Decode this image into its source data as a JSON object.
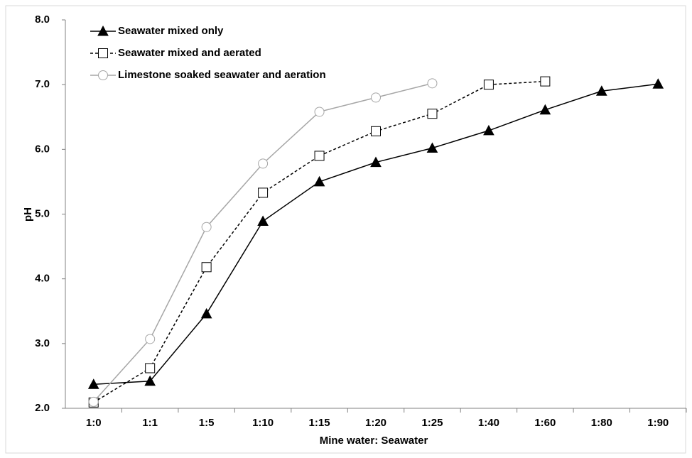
{
  "chart_data": {
    "type": "line",
    "x_label": "Mine water: Seawater",
    "y_label": "pH",
    "categories": [
      "1:0",
      "1:1",
      "1:5",
      "1:10",
      "1:15",
      "1:20",
      "1:25",
      "1:40",
      "1:60",
      "1:80",
      "1:90"
    ],
    "series": [
      {
        "name": "Seawater mixed only",
        "color": "#000000",
        "dashed": false,
        "marker": "triangle",
        "values": [
          2.37,
          2.42,
          3.46,
          4.89,
          5.5,
          5.8,
          6.02,
          6.29,
          6.61,
          6.9,
          7.01
        ]
      },
      {
        "name": "Seawater mixed and aerated",
        "color": "#000000",
        "dashed": true,
        "marker": "square",
        "values": [
          2.09,
          2.62,
          4.18,
          5.33,
          5.9,
          6.28,
          6.55,
          7.0,
          7.05,
          null,
          null
        ]
      },
      {
        "name": "Limestone soaked seawater and aeration",
        "color": "#a6a6a6",
        "dashed": false,
        "marker": "circle",
        "values": [
          2.1,
          3.07,
          4.8,
          5.78,
          6.58,
          6.8,
          7.02,
          null,
          null,
          null,
          null
        ]
      }
    ],
    "ylim": [
      2,
      8
    ],
    "yticks": [
      {
        "value": 2,
        "label": "2.0"
      },
      {
        "value": 3,
        "label": "3.0"
      },
      {
        "value": 4,
        "label": "4.0"
      },
      {
        "value": 5,
        "label": "5.0"
      },
      {
        "value": 6,
        "label": "6.0"
      },
      {
        "value": 7,
        "label": "7.0"
      },
      {
        "value": 8,
        "label": "8.0"
      }
    ],
    "grid": false,
    "legend": "top-left"
  }
}
